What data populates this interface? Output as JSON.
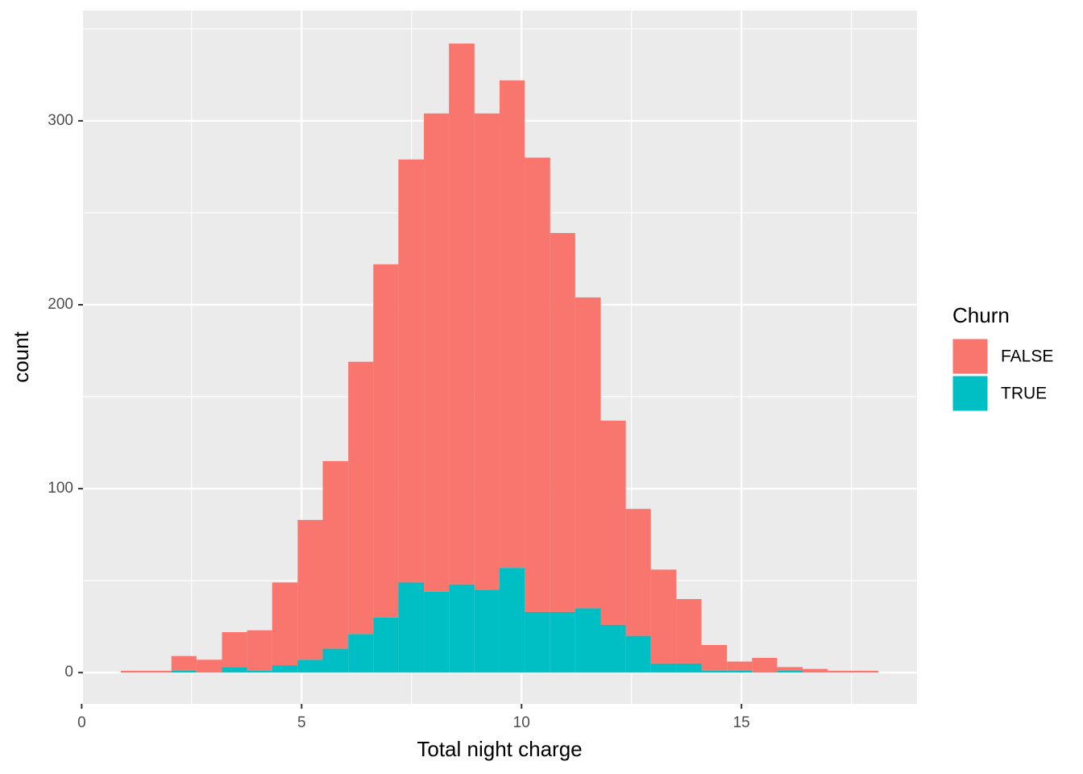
{
  "chart_data": {
    "type": "histogram",
    "x_label": "Total night charge",
    "y_label": "count",
    "legend_title": "Churn",
    "stacked": true,
    "bins": [
      0.89,
      1.46,
      2.04,
      2.61,
      3.19,
      3.76,
      4.33,
      4.91,
      5.48,
      6.06,
      6.63,
      7.2,
      7.78,
      8.35,
      8.93,
      9.5,
      10.07,
      10.65,
      11.22,
      11.8,
      12.37,
      12.94,
      13.52,
      14.09,
      14.67,
      15.24,
      15.81,
      16.39,
      16.96,
      17.54,
      18.11
    ],
    "series": [
      {
        "name": "FALSE",
        "color": "#f8766d",
        "values": [
          1,
          1,
          8,
          7,
          19,
          22,
          45,
          76,
          102,
          148,
          192,
          230,
          260,
          294,
          259,
          265,
          247,
          206,
          169,
          111,
          69,
          51,
          35,
          14,
          5,
          8,
          2,
          2,
          1,
          1
        ]
      },
      {
        "name": "TRUE",
        "color": "#00bfc4",
        "values": [
          0,
          0,
          1,
          0,
          3,
          1,
          4,
          7,
          13,
          21,
          30,
          49,
          44,
          48,
          45,
          57,
          33,
          33,
          35,
          26,
          20,
          5,
          5,
          1,
          1,
          0,
          1,
          0,
          0,
          0
        ]
      }
    ],
    "xlim": [
      0.03,
      18.99
    ],
    "ylim": [
      -17,
      360
    ],
    "xticks": [
      0,
      5,
      10,
      15
    ],
    "yticks": [
      0,
      100,
      200,
      300
    ],
    "x_minor_ticks": [
      2.5,
      7.5,
      12.5,
      17.5
    ],
    "y_minor_ticks": [
      50,
      150,
      250,
      350
    ],
    "grid": true
  }
}
